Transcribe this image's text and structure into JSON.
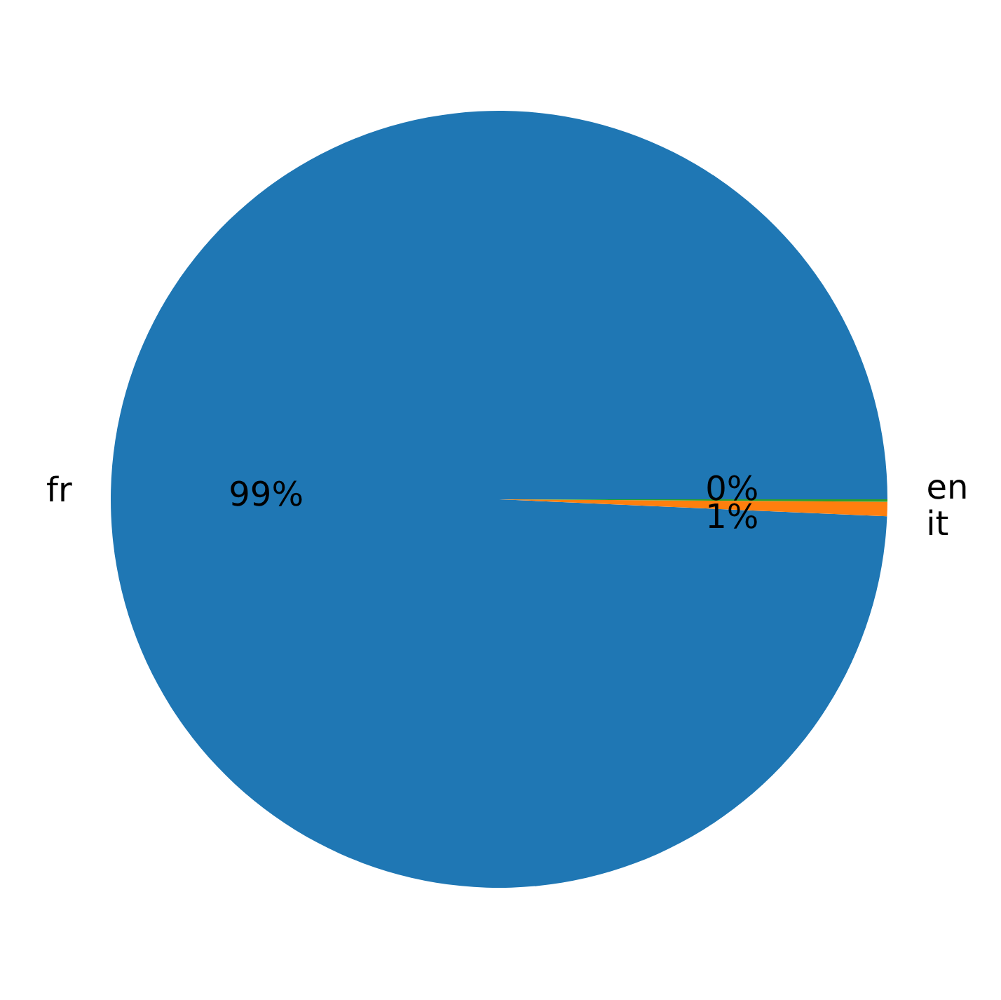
{
  "chart_data": {
    "type": "pie",
    "categories": [
      "fr",
      "it",
      "en"
    ],
    "values": [
      99.3,
      0.6,
      0.1
    ],
    "colors": [
      "#1f77b4",
      "#ff7f0e",
      "#2ca02c"
    ],
    "value_labels": [
      "99%",
      "1%",
      "0%"
    ],
    "legend": false
  }
}
